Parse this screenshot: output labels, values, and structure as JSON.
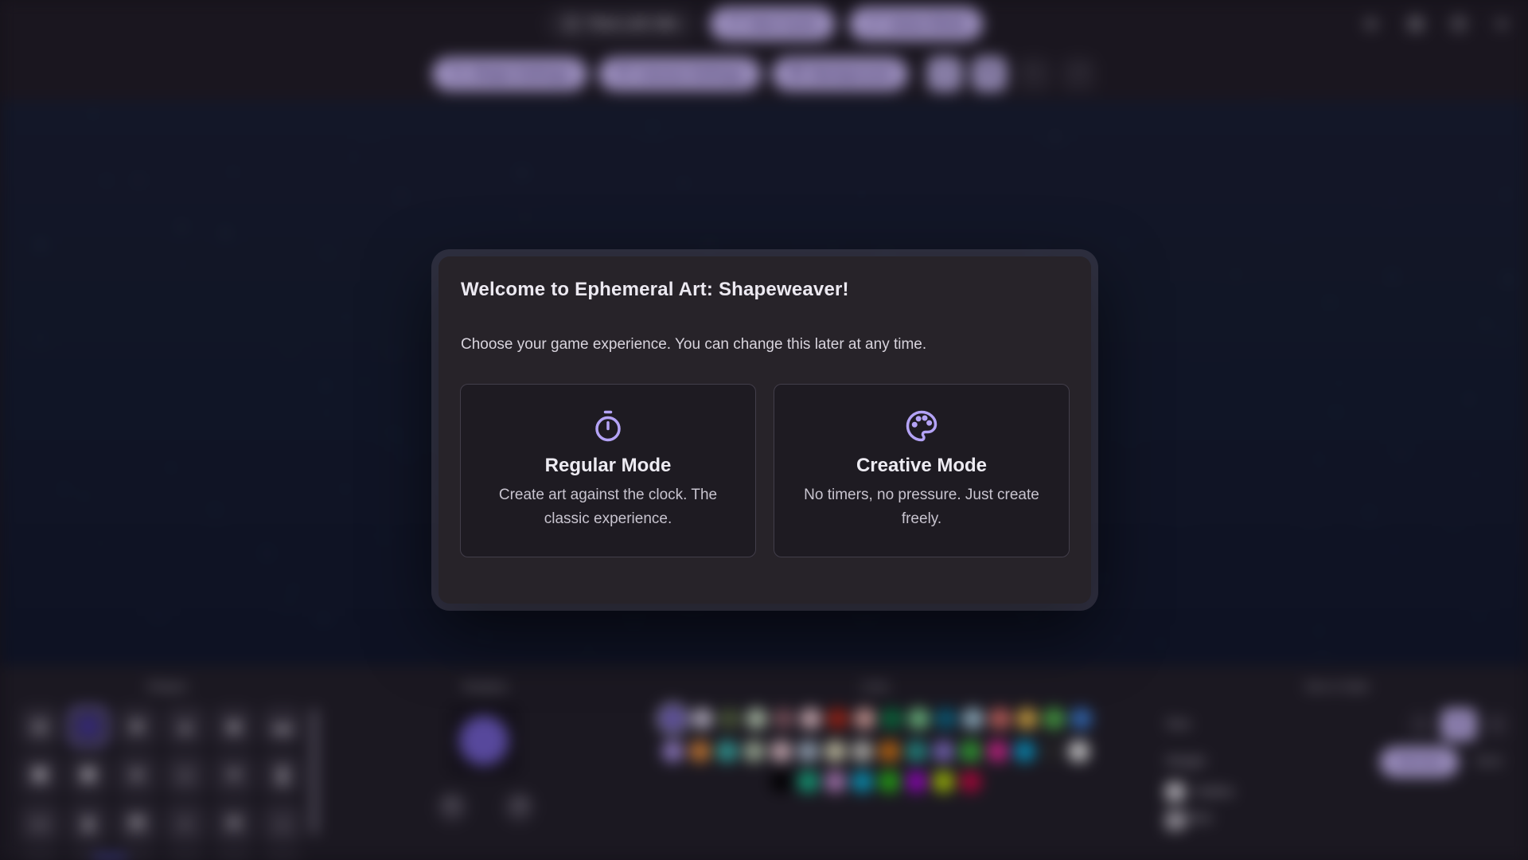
{
  "top_bar": {
    "time_left_label": "Time Left: 60s",
    "new_cycle_label": "New Cycle",
    "game_mode_label": "Game Mode",
    "window_icons": [
      "volume-icon",
      "save-icon",
      "help-icon",
      "close-icon"
    ]
  },
  "toolbar": {
    "shape_settings_label": "Shape Settings",
    "canvas_settings_label": "Canvas Settings",
    "background_label": "Background",
    "icon_buttons": [
      {
        "icon": "download-icon",
        "enabled": true
      },
      {
        "icon": "copy-icon",
        "enabled": true
      },
      {
        "icon": "undo-icon",
        "enabled": false
      },
      {
        "icon": "redo-icon",
        "enabled": false
      }
    ]
  },
  "modal": {
    "title": "Welcome to Ephemeral Art: Shapeweaver!",
    "subtitle": "Choose your game experience. You can change this later at any time.",
    "modes": [
      {
        "icon": "stopwatch-icon",
        "name": "Regular Mode",
        "description": "Create art against the clock. The classic experience."
      },
      {
        "icon": "palette-icon",
        "name": "Creative Mode",
        "description": "No timers, no pressure. Just create freely."
      }
    ]
  },
  "panels": {
    "shapes": {
      "title": "Shapes",
      "selected_index": 1,
      "glyphs": [
        "◍",
        "●",
        "■",
        "▲",
        "◆",
        "▬",
        "⬟",
        "⬢",
        "★",
        "◇",
        "♥",
        "❚",
        "▭",
        "▮",
        "⬒",
        "◗",
        "✚",
        "⌂",
        "▰",
        "◆",
        "▢",
        "◉",
        "◆",
        "▣"
      ]
    },
    "rotation": {
      "title": "Rotation"
    },
    "color": {
      "title": "Color",
      "selected": "#6b5bb5",
      "rows": [
        [
          "#6b5bb5",
          "#cfc8dc",
          "#55663f",
          "#c9dec2",
          "#8c5f68",
          "#f2ccd3",
          "#b52a18",
          "#edb3ab",
          "#0a7d45",
          "#7fdd96",
          "#0a6d8e",
          "#abd3e4",
          "#e4736b",
          "#eebd4a",
          "#53bb4c",
          "#3b7ed6"
        ],
        [
          "#ab93e6",
          "#e68d3b",
          "#3bbcb3",
          "#bccfb2",
          "#f3cfd7",
          "#b3c7d9",
          "#ece8c3",
          "#d3d3ca",
          "#dd7c12",
          "#2aa59c",
          "#8d7cd9",
          "#3bbb3b",
          "#e62b9b",
          "#0aa6d6",
          "#2b2b2b",
          "#f2f2f2"
        ],
        [
          "#000000",
          "#17bd8d",
          "#c78fd4",
          "#0ab4dc",
          "#2bc417",
          "#ab08dc",
          "#bcdc08",
          "#cc0844"
        ]
      ]
    },
    "size_style": {
      "title": "Size & Style",
      "size_label": "Size",
      "minus_label": "−",
      "size_value": "40",
      "plus_label": "+",
      "weight_label": "Weight",
      "weight_selected": "Normal",
      "weight_other": "Bold",
      "check_mark": "✓",
      "checkbox1_label": "Outline",
      "checkbox2_label": "Shadow"
    }
  },
  "theme": {
    "accent": "#c4b5ef",
    "accent_text": "#3c2e66",
    "selected_shape_ring": "#9d8bef",
    "canvas_bg": "#131a2d"
  }
}
